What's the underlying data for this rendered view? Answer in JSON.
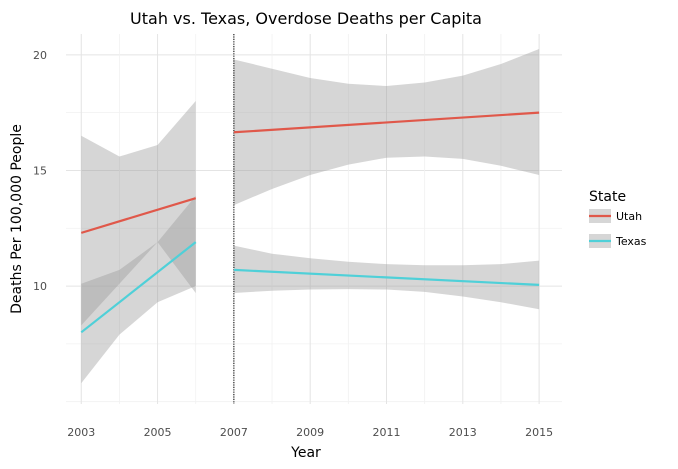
{
  "chart_data": {
    "type": "line",
    "title": "Utah vs. Texas, Overdose Deaths per Capita",
    "xlabel": "Year",
    "ylabel": "Deaths Per 100,000 People",
    "xlim": [
      2002.6,
      2015.6
    ],
    "ylim": [
      4.9,
      20.9
    ],
    "x_ticks": [
      2003,
      2005,
      2007,
      2009,
      2011,
      2013,
      2015
    ],
    "y_ticks": [
      10,
      15,
      20
    ],
    "grid": true,
    "legend": {
      "title": "State",
      "placement": "right"
    },
    "vline": {
      "x": 2007,
      "style": "dotted",
      "color": "#000000"
    },
    "series": [
      {
        "name": "Utah",
        "color": "#e0584a",
        "segments": [
          {
            "x": [
              2003,
              2006
            ],
            "y": [
              12.3,
              13.8
            ],
            "ci_x": [
              2003,
              2004,
              2005,
              2006
            ],
            "ci_low": [
              8.3,
              10.1,
              11.9,
              9.7
            ],
            "ci_high": [
              16.5,
              15.6,
              16.1,
              18.0
            ]
          },
          {
            "x": [
              2007,
              2015
            ],
            "y": [
              16.65,
              17.5
            ],
            "ci_x": [
              2007,
              2008,
              2009,
              2010,
              2011,
              2012,
              2013,
              2014,
              2015
            ],
            "ci_low": [
              13.5,
              14.2,
              14.8,
              15.25,
              15.55,
              15.6,
              15.5,
              15.2,
              14.8
            ],
            "ci_high": [
              19.8,
              19.4,
              19.0,
              18.75,
              18.65,
              18.8,
              19.1,
              19.6,
              20.25
            ]
          }
        ]
      },
      {
        "name": "Texas",
        "color": "#4fd0d8",
        "segments": [
          {
            "x": [
              2003,
              2006
            ],
            "y": [
              8.0,
              11.9
            ],
            "ci_x": [
              2003,
              2004,
              2005,
              2006
            ],
            "ci_low": [
              5.8,
              7.9,
              9.3,
              10.0
            ],
            "ci_high": [
              10.1,
              10.7,
              11.9,
              13.9
            ]
          },
          {
            "x": [
              2007,
              2015
            ],
            "y": [
              10.7,
              10.05
            ],
            "ci_x": [
              2007,
              2008,
              2009,
              2010,
              2011,
              2012,
              2013,
              2014,
              2015
            ],
            "ci_low": [
              9.7,
              9.8,
              9.85,
              9.87,
              9.85,
              9.75,
              9.55,
              9.3,
              9.0
            ],
            "ci_high": [
              11.75,
              11.4,
              11.2,
              11.05,
              10.95,
              10.9,
              10.9,
              10.95,
              11.1
            ]
          }
        ]
      }
    ]
  }
}
